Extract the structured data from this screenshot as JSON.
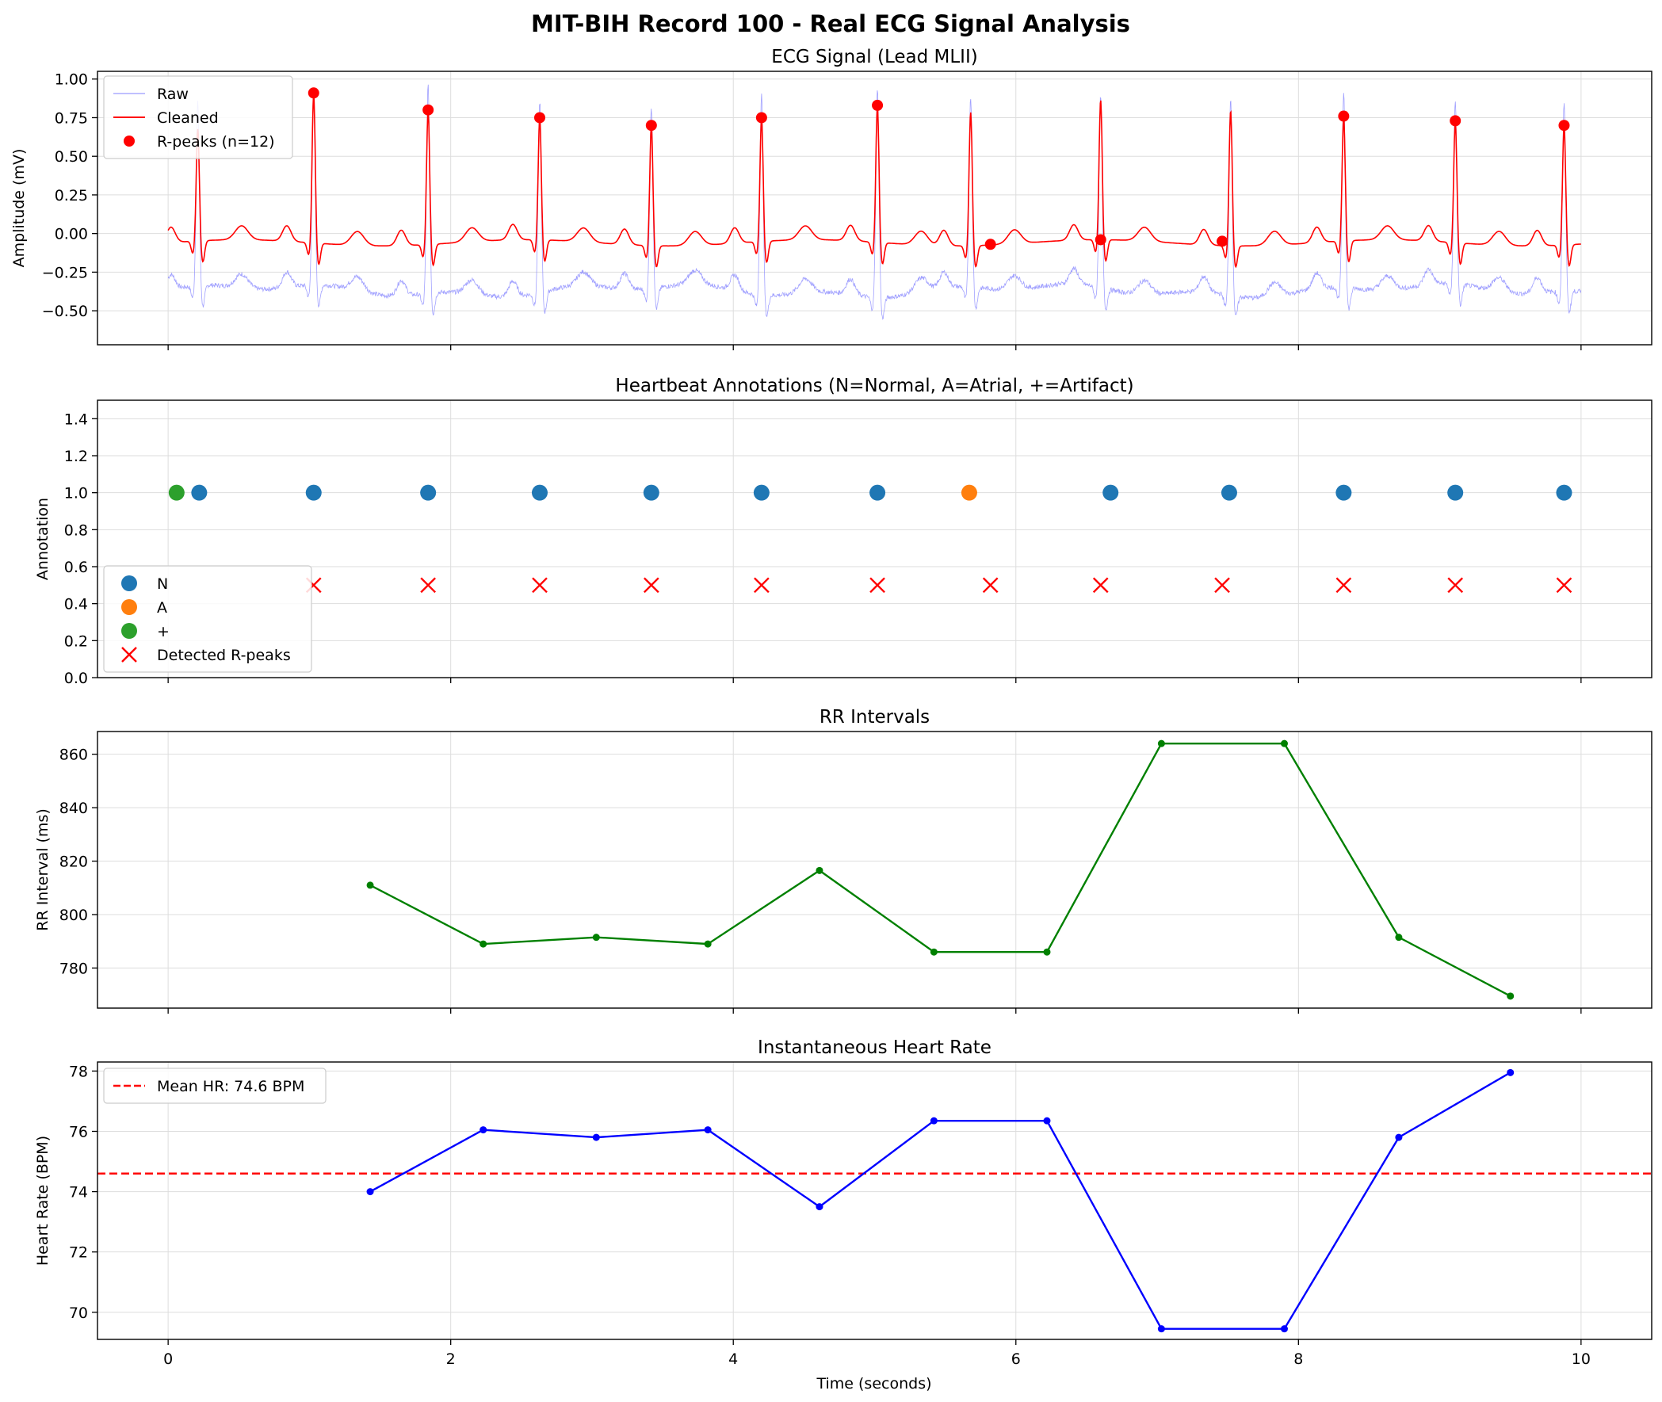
{
  "figure_title": "MIT-BIH Record 100 - Real ECG Signal Analysis",
  "xlabel": "Time (seconds)",
  "colors": {
    "raw": "#8080ff",
    "cleaned": "#ff0000",
    "rpeak": "#ff0000",
    "N": "#1f77b4",
    "A": "#ff7f0e",
    "artifact": "#2ca02c",
    "rr": "#008000",
    "hr": "#0000ff",
    "grid": "#dddddd"
  },
  "chart_data": [
    {
      "type": "line",
      "title": "ECG Signal (Lead MLII)",
      "ylabel": "Amplitude (mV)",
      "xlim": [
        -0.5,
        10.5
      ],
      "ylim": [
        -0.72,
        1.05
      ],
      "yticks": [
        -0.5,
        -0.25,
        0.0,
        0.25,
        0.5,
        0.75,
        1.0
      ],
      "ytick_labels": [
        "−0.50",
        "−0.25",
        "0.00",
        "0.25",
        "0.50",
        "0.75",
        "1.00"
      ],
      "xticks": [
        0,
        2,
        4,
        6,
        8,
        10
      ],
      "legend": {
        "placement": "upper-left",
        "entries": [
          "Raw",
          "Cleaned",
          "R-peaks (n=12)"
        ]
      },
      "beat_times": [
        0.21,
        1.03,
        1.84,
        2.63,
        3.42,
        4.2,
        5.02,
        5.68,
        6.6,
        7.52,
        8.32,
        9.11,
        9.88
      ],
      "r_peaks": {
        "x": [
          1.03,
          1.84,
          2.63,
          3.42,
          4.2,
          5.02,
          5.82,
          6.6,
          7.46,
          8.32,
          9.11,
          9.88
        ],
        "y": [
          0.91,
          0.8,
          0.75,
          0.7,
          0.75,
          0.83,
          -0.07,
          -0.04,
          -0.05,
          0.76,
          0.73,
          0.7
        ]
      },
      "cleaned_peak_amplitudes": [
        0.68,
        0.91,
        0.8,
        0.75,
        0.7,
        0.75,
        0.83,
        0.79,
        0.87,
        0.8,
        0.76,
        0.73,
        0.7
      ],
      "raw_peak_amplitudes": [
        0.85,
        0.92,
        0.96,
        0.86,
        0.82,
        0.9,
        0.95,
        0.89,
        0.9,
        0.89,
        0.92,
        0.86,
        0.84
      ]
    },
    {
      "type": "scatter",
      "title": "Heartbeat Annotations (N=Normal, A=Atrial, +=Artifact)",
      "ylabel": "Annotation",
      "xlim": [
        -0.5,
        10.5
      ],
      "ylim": [
        0.0,
        1.5
      ],
      "yticks": [
        0.0,
        0.2,
        0.4,
        0.6,
        0.8,
        1.0,
        1.2,
        1.4
      ],
      "ytick_labels": [
        "0.0",
        "0.2",
        "0.4",
        "0.6",
        "0.8",
        "1.0",
        "1.2",
        "1.4"
      ],
      "xticks": [
        0,
        2,
        4,
        6,
        8,
        10
      ],
      "legend": {
        "placement": "lower-left",
        "entries": [
          "N",
          "A",
          "+",
          "Detected R-peaks"
        ]
      },
      "N": {
        "x": [
          0.22,
          1.03,
          1.84,
          2.63,
          3.42,
          4.2,
          5.02,
          6.67,
          7.51,
          8.32,
          9.11,
          9.88
        ],
        "y": 1.0
      },
      "A": {
        "x": [
          5.67
        ],
        "y": 1.0
      },
      "artifact": {
        "x": [
          0.06
        ],
        "y": 1.0
      },
      "detected": {
        "x": [
          1.03,
          1.84,
          2.63,
          3.42,
          4.2,
          5.02,
          5.82,
          6.6,
          7.46,
          8.32,
          9.11,
          9.88
        ],
        "y": 0.5
      }
    },
    {
      "type": "line",
      "title": "RR Intervals",
      "ylabel": "RR Interval (ms)",
      "xlim": [
        -0.5,
        10.5
      ],
      "ylim": [
        765,
        868.5
      ],
      "yticks": [
        780,
        800,
        820,
        840,
        860
      ],
      "ytick_labels": [
        "780",
        "800",
        "820",
        "840",
        "860"
      ],
      "xticks": [
        0,
        2,
        4,
        6,
        8,
        10
      ],
      "series": [
        {
          "x": [
            1.43,
            2.23,
            3.03,
            3.82,
            4.61,
            5.42,
            6.22,
            7.03,
            7.9,
            8.71,
            9.5
          ],
          "y": [
            811,
            789,
            791.5,
            789,
            816.5,
            786,
            786,
            864,
            864,
            791.5,
            769.5
          ]
        }
      ]
    },
    {
      "type": "line",
      "title": "Instantaneous Heart Rate",
      "ylabel": "Heart Rate (BPM)",
      "xlim": [
        -0.5,
        10.5
      ],
      "ylim": [
        69.1,
        78.3
      ],
      "yticks": [
        70,
        72,
        74,
        76,
        78
      ],
      "ytick_labels": [
        "70",
        "72",
        "74",
        "76",
        "78"
      ],
      "xticks": [
        0,
        2,
        4,
        6,
        8,
        10
      ],
      "xtick_labels": [
        "0",
        "2",
        "4",
        "6",
        "8",
        "10"
      ],
      "mean_hr": 74.6,
      "legend": {
        "placement": "upper-left",
        "entries": [
          "Mean HR: 74.6 BPM"
        ]
      },
      "series": [
        {
          "x": [
            1.43,
            2.23,
            3.03,
            3.82,
            4.61,
            5.42,
            6.22,
            7.03,
            7.9,
            8.71,
            9.5
          ],
          "y": [
            74.0,
            76.05,
            75.8,
            76.05,
            73.5,
            76.35,
            76.35,
            69.45,
            69.45,
            75.8,
            77.95
          ]
        }
      ]
    }
  ]
}
